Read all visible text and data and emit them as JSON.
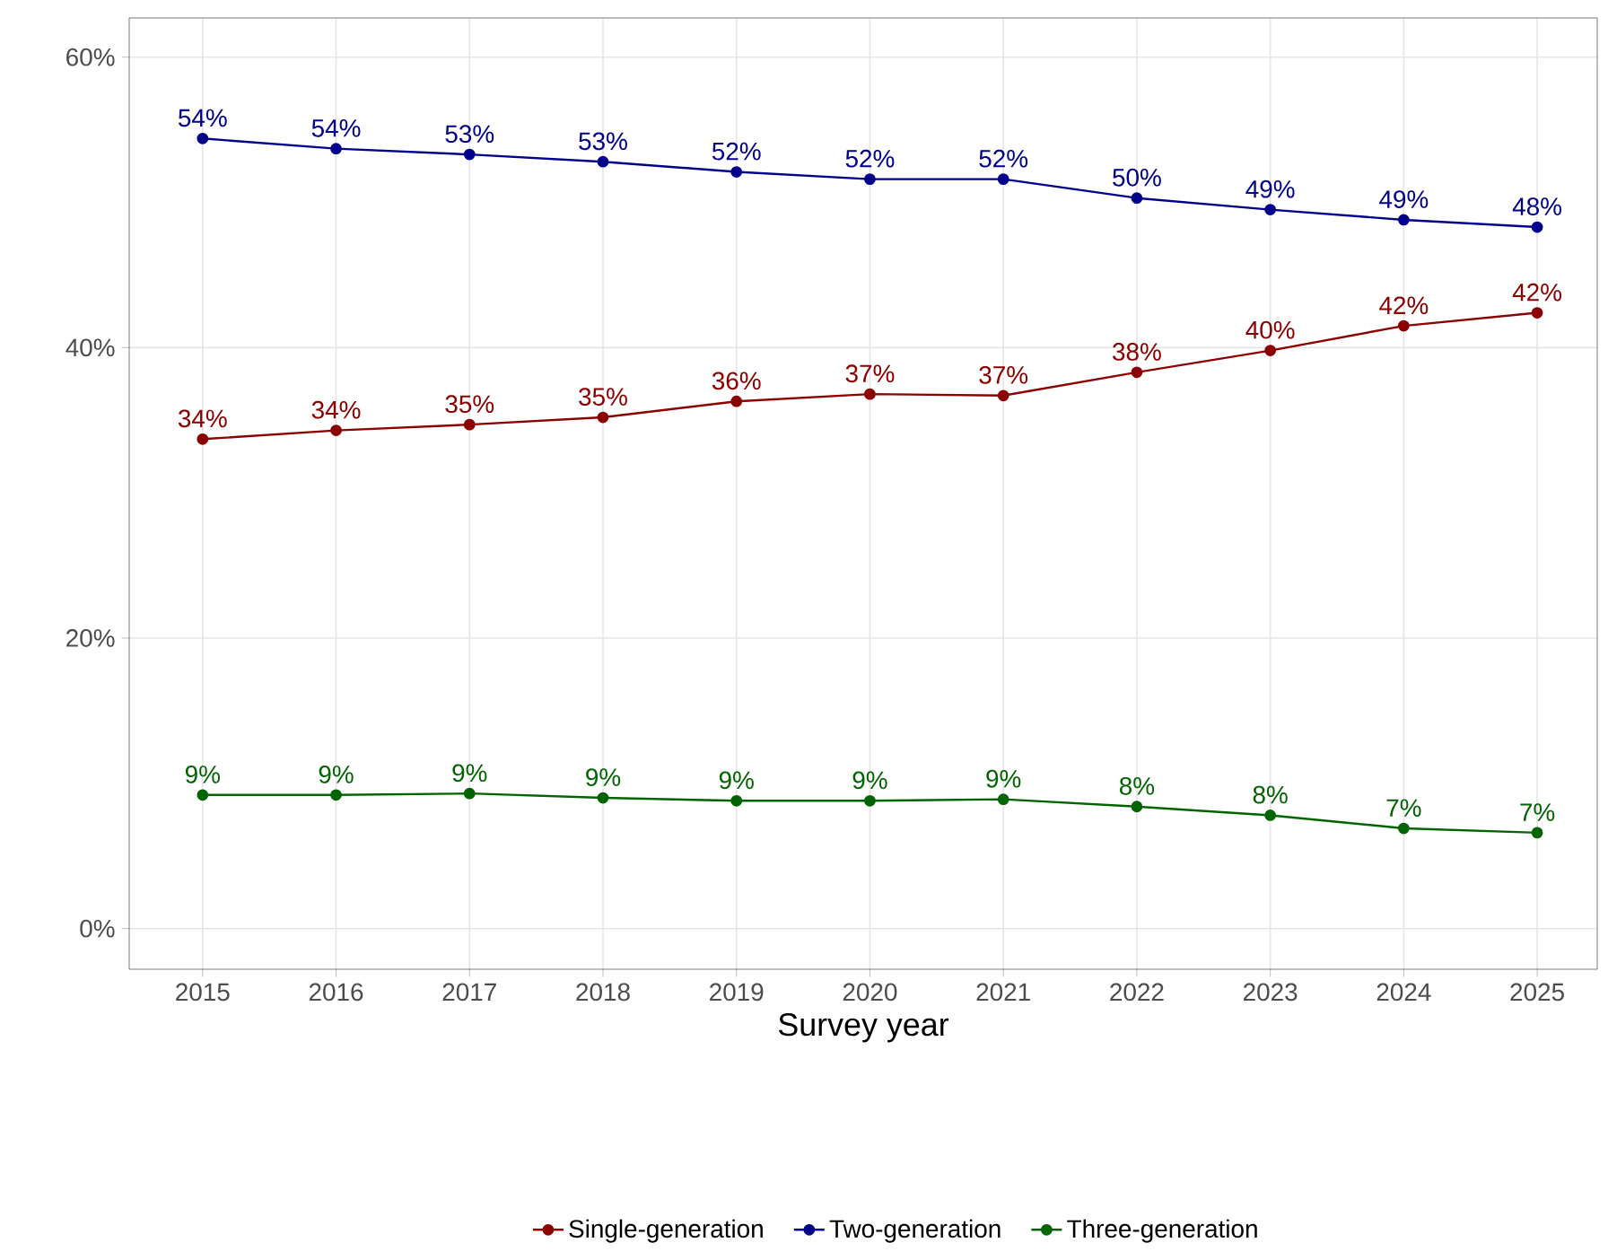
{
  "chart_data": {
    "type": "line",
    "xlabel": "Survey year",
    "x": [
      2015,
      2016,
      2017,
      2018,
      2019,
      2020,
      2021,
      2022,
      2023,
      2024,
      2025
    ],
    "xlim": [
      2014.45,
      2025.45
    ],
    "xticks": [
      2015,
      2016,
      2017,
      2018,
      2019,
      2020,
      2021,
      2022,
      2023,
      2024,
      2025
    ],
    "ylim": [
      -2.8,
      62.7
    ],
    "yticks": [
      {
        "value": 0,
        "label": "0%"
      },
      {
        "value": 20,
        "label": "20%"
      },
      {
        "value": 40,
        "label": "40%"
      },
      {
        "value": 60,
        "label": "60%"
      }
    ],
    "grid": true,
    "legend": "bottom",
    "marker": "circle",
    "line_style": "solid",
    "series": [
      {
        "name": "Single-generation",
        "color": "#8b0000",
        "values": [
          33.7,
          34.3,
          34.7,
          35.2,
          36.3,
          36.8,
          36.7,
          38.3,
          39.8,
          41.5,
          42.4
        ],
        "value_labels": [
          "34%",
          "34%",
          "35%",
          "35%",
          "36%",
          "37%",
          "37%",
          "38%",
          "40%",
          "42%",
          "42%"
        ]
      },
      {
        "name": "Two-generation",
        "color": "#00008b",
        "values": [
          54.4,
          53.7,
          53.3,
          52.8,
          52.1,
          51.6,
          51.6,
          50.3,
          49.5,
          48.8,
          48.3
        ],
        "value_labels": [
          "54%",
          "54%",
          "53%",
          "53%",
          "52%",
          "52%",
          "52%",
          "50%",
          "49%",
          "49%",
          "48%"
        ]
      },
      {
        "name": "Three-generation",
        "color": "#006400",
        "values": [
          9.2,
          9.2,
          9.3,
          9.0,
          8.8,
          8.8,
          8.9,
          8.4,
          7.8,
          6.9,
          6.6
        ],
        "value_labels": [
          "9%",
          "9%",
          "9%",
          "9%",
          "9%",
          "9%",
          "9%",
          "8%",
          "8%",
          "7%",
          "7%"
        ]
      }
    ]
  }
}
